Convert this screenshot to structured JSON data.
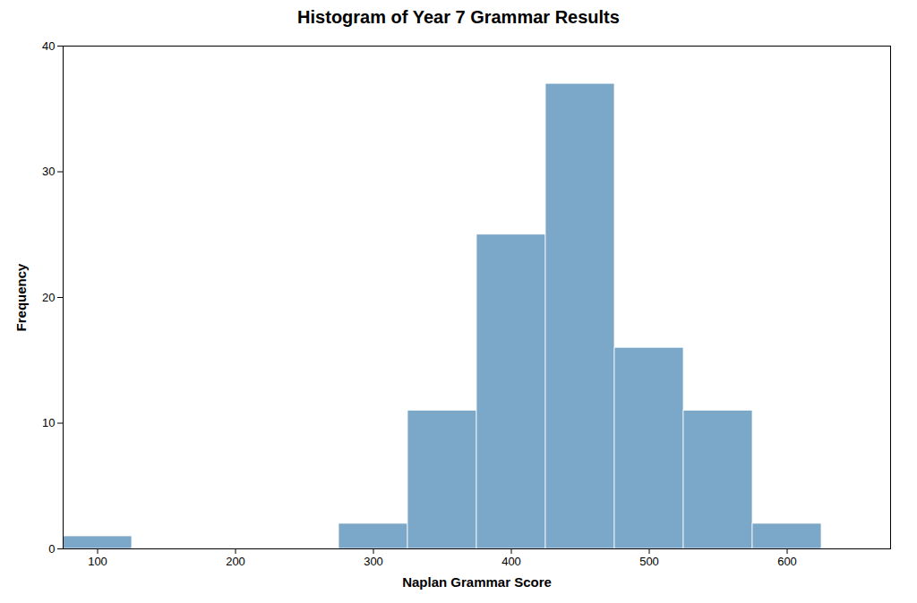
{
  "chart_data": {
    "type": "histogram",
    "title": "Histogram of Year 7 Grammar Results",
    "xlabel": "Naplan Grammar Score",
    "ylabel": "Frequency",
    "bins": [
      75,
      125,
      175,
      225,
      275,
      325,
      375,
      425,
      475,
      525,
      575,
      625,
      675
    ],
    "values": [
      1,
      0,
      0,
      0,
      2,
      11,
      25,
      37,
      16,
      11,
      2,
      0
    ],
    "color": "#7BA7C9",
    "xlim": [
      75,
      675
    ],
    "xticks": [
      100,
      200,
      300,
      400,
      500,
      600
    ],
    "ylim": [
      0,
      40
    ],
    "yticks": [
      0,
      10,
      20,
      30,
      40
    ],
    "grid": false
  }
}
